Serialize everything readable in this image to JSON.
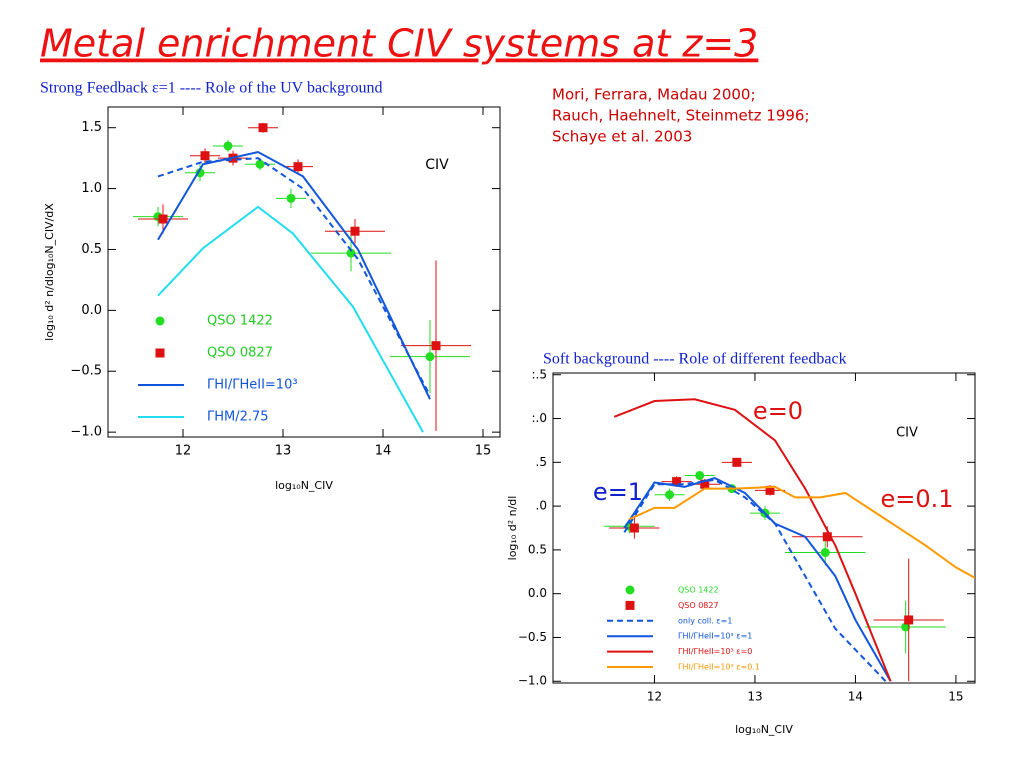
{
  "title": "Metal enrichment CIV systems at z=3",
  "citations": [
    "Mori, Ferrara, Madau 2000;",
    "Rauch, Haehnelt, Steinmetz 1996;",
    "Schaye et al. 2003"
  ],
  "chart_data": [
    {
      "type": "line",
      "title": "Strong Feedback ε=1 ---- Role of the UV background",
      "xlabel": "log₁₀N_CIV",
      "ylabel": "log₁₀ d² n/dlog₁₀N_CIV/dX",
      "xlim": [
        11.25,
        15.17
      ],
      "ylim": [
        -1.04,
        1.67
      ],
      "xticks": [
        12,
        13,
        14,
        15
      ],
      "yticks": [
        {
          "value": -1,
          "label": "−1.0"
        },
        {
          "value": -0.5,
          "label": "−0.5"
        },
        {
          "value": 0,
          "label": "0.0"
        },
        0.5,
        {
          "value": 1,
          "label": "1.0"
        },
        1.5
      ],
      "annotations": [
        {
          "text": "CIV",
          "color": "#000000"
        }
      ],
      "series": [
        {
          "name": "QSO 1422",
          "color": "#22dd22",
          "marker": "circle",
          "x": [
            11.75,
            12.17,
            12.45,
            12.77,
            13.08,
            13.68,
            14.47
          ],
          "values": [
            0.77,
            1.13,
            1.35,
            1.2,
            0.92,
            0.47,
            -0.38
          ],
          "xerr": [
            0.25,
            0.15,
            0.15,
            0.15,
            0.15,
            0.4,
            0.4
          ],
          "yerr": [
            0.08,
            0.07,
            0.05,
            0.05,
            0.08,
            0.15,
            0.3
          ]
        },
        {
          "name": "QSO 0827",
          "color": "#dd1111",
          "marker": "square",
          "x": [
            11.8,
            12.22,
            12.5,
            12.8,
            13.15,
            13.72,
            14.53
          ],
          "values": [
            0.75,
            1.27,
            1.25,
            1.5,
            1.18,
            0.65,
            -0.29
          ],
          "xerr": [
            0.25,
            0.15,
            0.15,
            0.15,
            0.15,
            0.3,
            0.35
          ],
          "yerr": [
            0.12,
            0.06,
            0.06,
            0.04,
            0.06,
            0.1,
            0.7
          ]
        },
        {
          "name": "ΓHI/ΓHeII=10³",
          "color": "#1155dd",
          "marker": "line",
          "x": [
            11.75,
            12.2,
            12.75,
            13.2,
            13.75,
            14.47
          ],
          "values": [
            0.58,
            1.2,
            1.3,
            1.1,
            0.5,
            -0.73
          ]
        },
        {
          "color": "#1155dd",
          "marker": "dash",
          "x": [
            11.75,
            12.2,
            12.75,
            13.2,
            13.75,
            14.47
          ],
          "values": [
            1.1,
            1.22,
            1.25,
            1.0,
            0.42,
            -0.7
          ]
        },
        {
          "name": "ΓHM/2.75",
          "color": "#22ddee",
          "marker": "line",
          "x": [
            11.75,
            12.2,
            12.75,
            13.1,
            13.7,
            14.4
          ],
          "values": [
            0.12,
            0.51,
            0.85,
            0.63,
            0.03,
            -1.0
          ]
        }
      ]
    },
    {
      "type": "line",
      "title": "Soft background ---- Role of different feedback",
      "xlabel": "log₁₀N_CIV",
      "ylabel": "log₁₀ d² n/dl",
      "xlim": [
        10.99,
        15.19
      ],
      "ylim": [
        -1.02,
        2.52
      ],
      "xticks": [
        12,
        13,
        14,
        15
      ],
      "yticks": [
        {
          "value": -1,
          "label": "−1.0"
        },
        {
          "value": -0.5,
          "label": "−0.5"
        },
        {
          "value": 0,
          "label": "0.0"
        },
        0.5,
        {
          "value": 1,
          "label": ".0"
        },
        {
          "value": 1.5,
          "label": ".5"
        },
        {
          "value": 2,
          "label": ":.0"
        },
        {
          "value": 2.5,
          "label": ":.5"
        }
      ],
      "annotations": [
        {
          "text": "CIV",
          "color": "#000000"
        },
        {
          "text": "e=0",
          "color": "#dd1111"
        },
        {
          "text": "e=1",
          "color": "#1122cc"
        },
        {
          "text": "e=0.1",
          "color": "#dd1111"
        }
      ],
      "series": [
        {
          "name": "QSO 1422",
          "color": "#22dd22",
          "marker": "circle",
          "x": [
            11.75,
            12.15,
            12.45,
            12.77,
            13.1,
            13.7,
            14.5
          ],
          "values": [
            0.77,
            1.13,
            1.35,
            1.2,
            0.92,
            0.47,
            -0.38
          ],
          "xerr": [
            0.25,
            0.15,
            0.15,
            0.15,
            0.15,
            0.4,
            0.4
          ],
          "yerr": [
            0.08,
            0.07,
            0.05,
            0.05,
            0.08,
            0.15,
            0.3
          ]
        },
        {
          "name": "QSO 0827",
          "color": "#dd1111",
          "marker": "square",
          "x": [
            11.8,
            12.22,
            12.5,
            12.82,
            13.15,
            13.72,
            14.53
          ],
          "values": [
            0.75,
            1.28,
            1.25,
            1.5,
            1.18,
            0.65,
            -0.3
          ],
          "xerr": [
            0.25,
            0.15,
            0.15,
            0.15,
            0.15,
            0.35,
            0.35
          ],
          "yerr": [
            0.12,
            0.06,
            0.06,
            0.04,
            0.06,
            0.12,
            0.7
          ]
        },
        {
          "name": "only coll. ε=1",
          "color": "#1155dd",
          "marker": "dash",
          "x": [
            11.7,
            12.0,
            12.3,
            12.6,
            12.9,
            13.2,
            13.5,
            13.8,
            14.3
          ],
          "values": [
            0.7,
            1.25,
            1.25,
            1.3,
            1.1,
            0.8,
            0.2,
            -0.4,
            -1.0
          ]
        },
        {
          "name": "ΓHI/ΓHeII=10³ ε=1",
          "color": "#1155dd",
          "marker": "line",
          "x": [
            11.7,
            12.0,
            12.3,
            12.6,
            12.9,
            13.2,
            13.5,
            13.8,
            14.0,
            14.35
          ],
          "values": [
            0.75,
            1.27,
            1.22,
            1.32,
            1.15,
            0.8,
            0.65,
            0.2,
            -0.3,
            -1.0
          ]
        },
        {
          "name": "ΓHI/ΓHeII=10³ ε=0",
          "color": "#dd1111",
          "marker": "line",
          "x": [
            11.6,
            12.0,
            12.4,
            12.8,
            13.2,
            13.5,
            13.8,
            14.0,
            14.35
          ],
          "values": [
            2.02,
            2.2,
            2.22,
            2.1,
            1.75,
            1.2,
            0.55,
            0.0,
            -1.0
          ]
        },
        {
          "name": "ΓHI/ΓHeII=10³ ε=0.1",
          "color": "#ff9900",
          "marker": "line",
          "x": [
            11.75,
            12.0,
            12.2,
            12.5,
            12.8,
            13.2,
            13.4,
            13.65,
            13.9,
            14.3,
            14.7,
            15.0,
            15.19
          ],
          "values": [
            0.85,
            0.98,
            0.98,
            1.2,
            1.2,
            1.22,
            1.1,
            1.1,
            1.15,
            0.85,
            0.55,
            0.3,
            0.18
          ]
        }
      ]
    }
  ]
}
